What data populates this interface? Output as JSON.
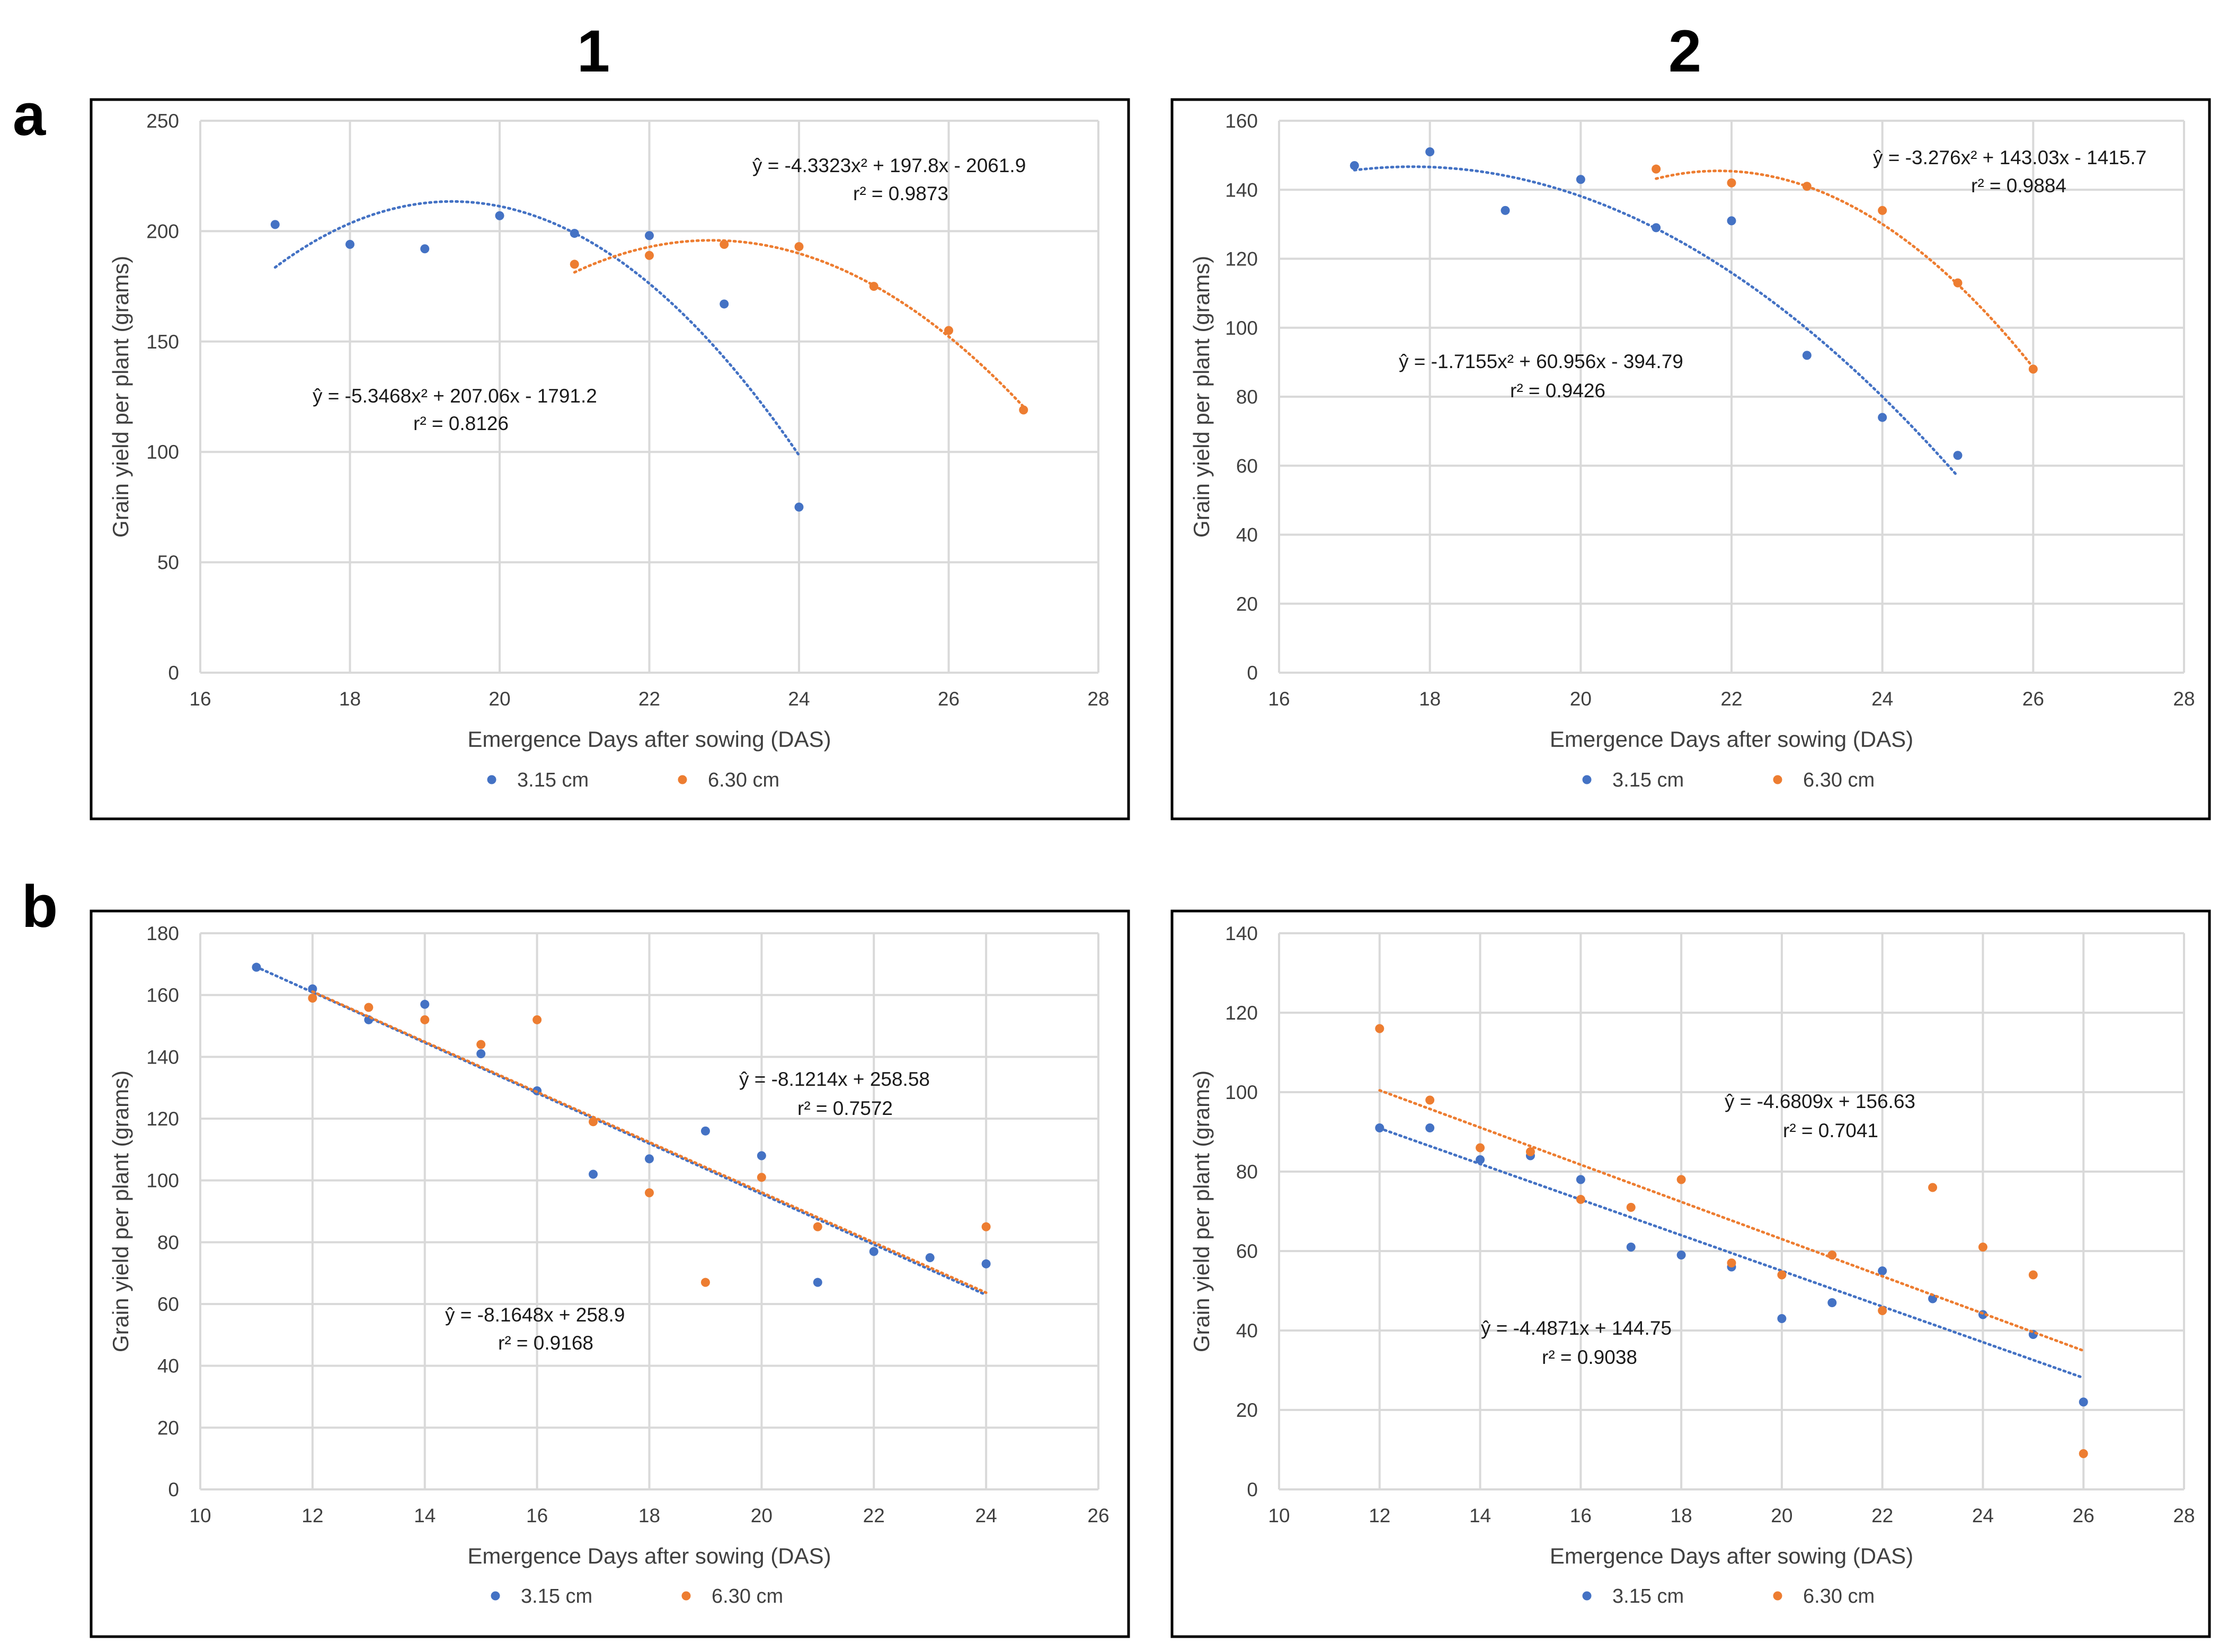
{
  "column_labels": [
    "1",
    "2"
  ],
  "row_labels": [
    "a",
    "b"
  ],
  "colors": {
    "series_a": "#4472C4",
    "series_b": "#ED7D31"
  },
  "legend": [
    "3.15 cm",
    "6.30 cm"
  ],
  "chart_data": [
    {
      "panel": "a1",
      "type": "scatter",
      "xlabel": "Emergence Days after sowing (DAS)",
      "ylabel": "Grain yield per plant (grams)",
      "xlim": [
        16,
        28
      ],
      "xticks": [
        16,
        18,
        20,
        22,
        24,
        26,
        28
      ],
      "ylim": [
        0,
        250
      ],
      "yticks": [
        0,
        50,
        100,
        150,
        200,
        250
      ],
      "grid": true,
      "series": [
        {
          "name": "3.15 cm",
          "color": "#4472C4",
          "x": [
            17,
            18,
            19,
            20,
            21,
            22,
            23,
            24
          ],
          "y": [
            203,
            194,
            192,
            207,
            199,
            198,
            167,
            75
          ],
          "trend": {
            "kind": "poly2",
            "a": -5.3468,
            "b": 207.06,
            "c": -1791.2,
            "xrange": [
              17,
              24
            ]
          },
          "equation": "ŷ  = -5.3468x² + 207.06x - 1791.2",
          "r2": "r² = 0.8126"
        },
        {
          "name": "6.30 cm",
          "color": "#ED7D31",
          "x": [
            21,
            22,
            23,
            24,
            25,
            26,
            27
          ],
          "y": [
            185,
            189,
            194,
            193,
            175,
            155,
            119
          ],
          "trend": {
            "kind": "poly2",
            "a": -4.3323,
            "b": 197.8,
            "c": -2061.9,
            "xrange": [
              21,
              27
            ]
          },
          "equation": "ŷ  = -4.3323x² + 197.8x - 2061.9",
          "r2": "r² = 0.9873"
        }
      ]
    },
    {
      "panel": "a2",
      "type": "scatter",
      "xlabel": "Emergence Days after sowing (DAS)",
      "ylabel": "Grain yield per plant (grams)",
      "xlim": [
        16,
        28
      ],
      "xticks": [
        16,
        18,
        20,
        22,
        24,
        26,
        28
      ],
      "ylim": [
        0,
        160
      ],
      "yticks": [
        0,
        20,
        40,
        60,
        80,
        100,
        120,
        140,
        160
      ],
      "grid": true,
      "series": [
        {
          "name": "3.15 cm",
          "color": "#4472C4",
          "x": [
            17,
            18,
            19,
            20,
            21,
            22,
            23,
            24,
            25
          ],
          "y": [
            147,
            151,
            134,
            143,
            129,
            131,
            92,
            74,
            63
          ],
          "trend": {
            "kind": "poly2",
            "a": -1.7155,
            "b": 60.956,
            "c": -394.79,
            "xrange": [
              17,
              25
            ]
          },
          "equation": "ŷ  = -1.7155x² + 60.956x - 394.79",
          "r2": "r² = 0.9426"
        },
        {
          "name": "6.30 cm",
          "color": "#ED7D31",
          "x": [
            21,
            22,
            23,
            24,
            25,
            26
          ],
          "y": [
            146,
            142,
            141,
            134,
            113,
            88
          ],
          "trend": {
            "kind": "poly2",
            "a": -3.276,
            "b": 143.03,
            "c": -1415.7,
            "xrange": [
              21,
              26
            ]
          },
          "equation": "ŷ  = -3.276x² + 143.03x - 1415.7",
          "r2": "r² = 0.9884"
        }
      ]
    },
    {
      "panel": "b1",
      "type": "scatter",
      "xlabel": "Emergence Days after sowing (DAS)",
      "ylabel": "Grain yield per plant (grams)",
      "xlim": [
        10,
        26
      ],
      "xticks": [
        10,
        12,
        14,
        16,
        18,
        20,
        22,
        24,
        26
      ],
      "ylim": [
        0,
        180
      ],
      "yticks": [
        0,
        20,
        40,
        60,
        80,
        100,
        120,
        140,
        160,
        180
      ],
      "grid": true,
      "series": [
        {
          "name": "3.15 cm",
          "color": "#4472C4",
          "x": [
            11,
            12,
            13,
            14,
            15,
            16,
            17,
            18,
            19,
            20,
            21,
            22,
            23,
            24
          ],
          "y": [
            169,
            162,
            152,
            157,
            141,
            129,
            102,
            107,
            116,
            108,
            67,
            77,
            75,
            73
          ],
          "trend": {
            "kind": "linear",
            "m": -8.1648,
            "b": 258.9,
            "xrange": [
              11,
              24
            ]
          },
          "equation": "ŷ  = -8.1648x + 258.9",
          "r2": "r² = 0.9168"
        },
        {
          "name": "6.30 cm",
          "color": "#ED7D31",
          "x": [
            12,
            13,
            14,
            15,
            16,
            17,
            18,
            19,
            20,
            21,
            24
          ],
          "y": [
            159,
            156,
            152,
            144,
            152,
            119,
            96,
            67,
            101,
            85,
            85
          ],
          "trend": {
            "kind": "linear",
            "m": -8.1214,
            "b": 258.58,
            "xrange": [
              12,
              24
            ]
          },
          "equation": "ŷ  = -8.1214x + 258.58",
          "r2": "r² = 0.7572"
        }
      ]
    },
    {
      "panel": "b2",
      "type": "scatter",
      "xlabel": "Emergence Days after sowing (DAS)",
      "ylabel": "Grain yield per plant (grams)",
      "xlim": [
        10,
        28
      ],
      "xticks": [
        10,
        12,
        14,
        16,
        18,
        20,
        22,
        24,
        26,
        28
      ],
      "ylim": [
        0,
        140
      ],
      "yticks": [
        0,
        20,
        40,
        60,
        80,
        100,
        120,
        140
      ],
      "grid": true,
      "series": [
        {
          "name": "3.15 cm",
          "color": "#4472C4",
          "x": [
            12,
            13,
            14,
            15,
            16,
            17,
            18,
            19,
            20,
            21,
            22,
            23,
            24,
            25,
            26
          ],
          "y": [
            91,
            91,
            83,
            84,
            78,
            61,
            59,
            56,
            43,
            47,
            55,
            48,
            44,
            39,
            22
          ],
          "trend": {
            "kind": "linear",
            "m": -4.4871,
            "b": 144.75,
            "xrange": [
              12,
              26
            ]
          },
          "equation": "ŷ  = -4.4871x + 144.75",
          "r2": "r² = 0.9038"
        },
        {
          "name": "6.30 cm",
          "color": "#ED7D31",
          "x": [
            12,
            13,
            14,
            15,
            16,
            17,
            18,
            19,
            20,
            21,
            22,
            23,
            24,
            25,
            26
          ],
          "y": [
            116,
            98,
            86,
            85,
            73,
            71,
            78,
            57,
            54,
            59,
            45,
            76,
            61,
            54,
            9
          ],
          "trend": {
            "kind": "linear",
            "m": -4.6809,
            "b": 156.63,
            "xrange": [
              12,
              26
            ]
          },
          "equation": "ŷ  = -4.6809x + 156.63",
          "r2": "r² = 0.7041"
        }
      ]
    }
  ]
}
